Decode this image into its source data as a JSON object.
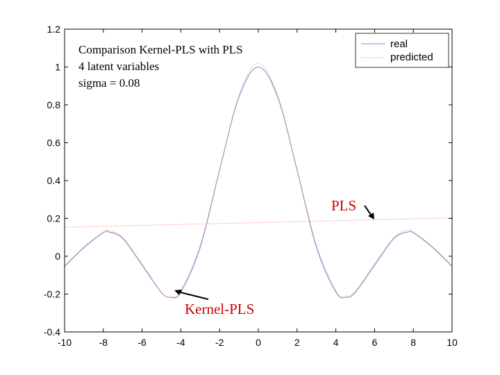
{
  "chart_data": {
    "type": "line",
    "title": "",
    "xlabel": "",
    "ylabel": "",
    "xlim": [
      -10,
      10
    ],
    "ylim": [
      -0.4,
      1.2
    ],
    "x_ticks": [
      -10,
      -8,
      -6,
      -4,
      -2,
      0,
      2,
      4,
      6,
      8,
      10
    ],
    "y_ticks": [
      -0.4,
      -0.2,
      0,
      0.2,
      0.4,
      0.6,
      0.8,
      1,
      1.2
    ],
    "x_tick_labels": [
      "-10",
      "-8",
      "-6",
      "-4",
      "-2",
      "0",
      "2",
      "4",
      "6",
      "8",
      "10"
    ],
    "y_tick_labels": [
      "-0.4",
      "-0.2",
      "0",
      "0.2",
      "0.4",
      "0.6",
      "0.8",
      "1",
      "1.2"
    ],
    "grid": false,
    "legend_position": "top-right",
    "annotation_lines": [
      "Comparison Kernel-PLS with PLS",
      "4 latent variables",
      "sigma = 0.08"
    ],
    "callouts": [
      {
        "text": "Kernel-PLS",
        "points_to": [
          -4.4,
          -0.215
        ]
      },
      {
        "text": "PLS",
        "points_to": [
          6.0,
          0.195
        ]
      }
    ],
    "series": [
      {
        "name": "real",
        "color": "#8888cc",
        "style": "solid",
        "x": [
          -10,
          -9,
          -8,
          -7.7,
          -7,
          -6,
          -5,
          -4.5,
          -4,
          -3,
          -2,
          -1,
          0,
          1,
          2,
          3,
          4,
          4.5,
          5,
          6,
          7,
          7.7,
          8,
          9,
          10
        ],
        "y": [
          -0.054,
          0.046,
          0.124,
          0.128,
          0.094,
          -0.047,
          -0.192,
          -0.217,
          -0.189,
          0.047,
          0.455,
          0.841,
          1.0,
          0.841,
          0.455,
          0.047,
          -0.189,
          -0.217,
          -0.192,
          -0.047,
          0.094,
          0.128,
          0.124,
          0.046,
          -0.054
        ]
      },
      {
        "name": "predicted",
        "color": "#ff9999",
        "style": "dotted",
        "x": [
          -10,
          -9,
          -8,
          -7.7,
          -7,
          -6,
          -5,
          -4.5,
          -4,
          -3,
          -2,
          -1,
          0,
          1,
          2,
          3,
          4,
          4.5,
          5,
          6,
          7,
          7.7,
          8,
          9,
          10
        ],
        "y": [
          -0.05,
          0.05,
          0.13,
          0.135,
          0.1,
          -0.04,
          -0.19,
          -0.215,
          -0.18,
          0.06,
          0.46,
          0.85,
          1.02,
          0.85,
          0.46,
          0.06,
          -0.18,
          -0.21,
          -0.185,
          -0.04,
          0.1,
          0.14,
          0.13,
          0.05,
          -0.05
        ]
      },
      {
        "name": "",
        "color": "#ff9999",
        "style": "dotted",
        "x": [
          -10,
          10
        ],
        "y": [
          0.153,
          0.203
        ]
      }
    ]
  }
}
